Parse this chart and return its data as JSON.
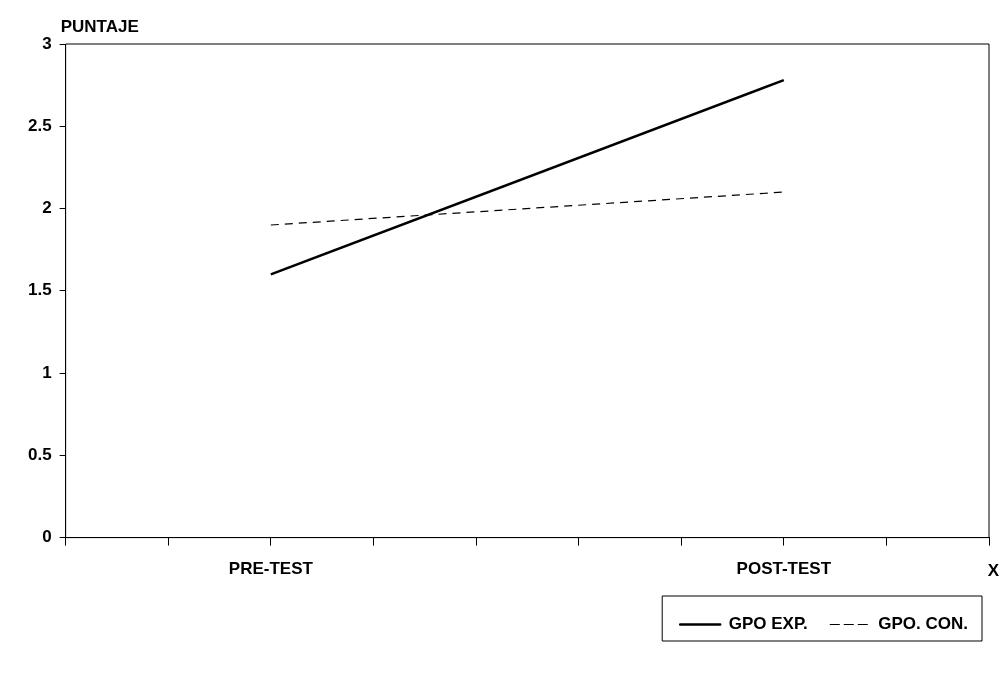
{
  "chart_data": {
    "type": "line",
    "xlabel": "X",
    "ylabel": "PUNTAJE",
    "categories": [
      null,
      null,
      "PRE-TEST",
      null,
      null,
      null,
      null,
      "POST-TEST",
      null,
      null
    ],
    "series": [
      {
        "name": "GPO EXP.",
        "color": "#000000",
        "line_style": "solid",
        "values": [
          null,
          null,
          1.6,
          null,
          null,
          null,
          null,
          2.78,
          null,
          null
        ]
      },
      {
        "name": "GPO. CON.",
        "color": "#000000",
        "line_style": "dashed",
        "values": [
          null,
          null,
          1.9,
          null,
          null,
          null,
          null,
          2.1,
          null,
          null
        ]
      }
    ],
    "ylim": [
      0,
      3
    ],
    "yticks": [
      0,
      0.5,
      1,
      1.5,
      2,
      2.5,
      3
    ],
    "legend": "bottom right",
    "marker": "none"
  }
}
